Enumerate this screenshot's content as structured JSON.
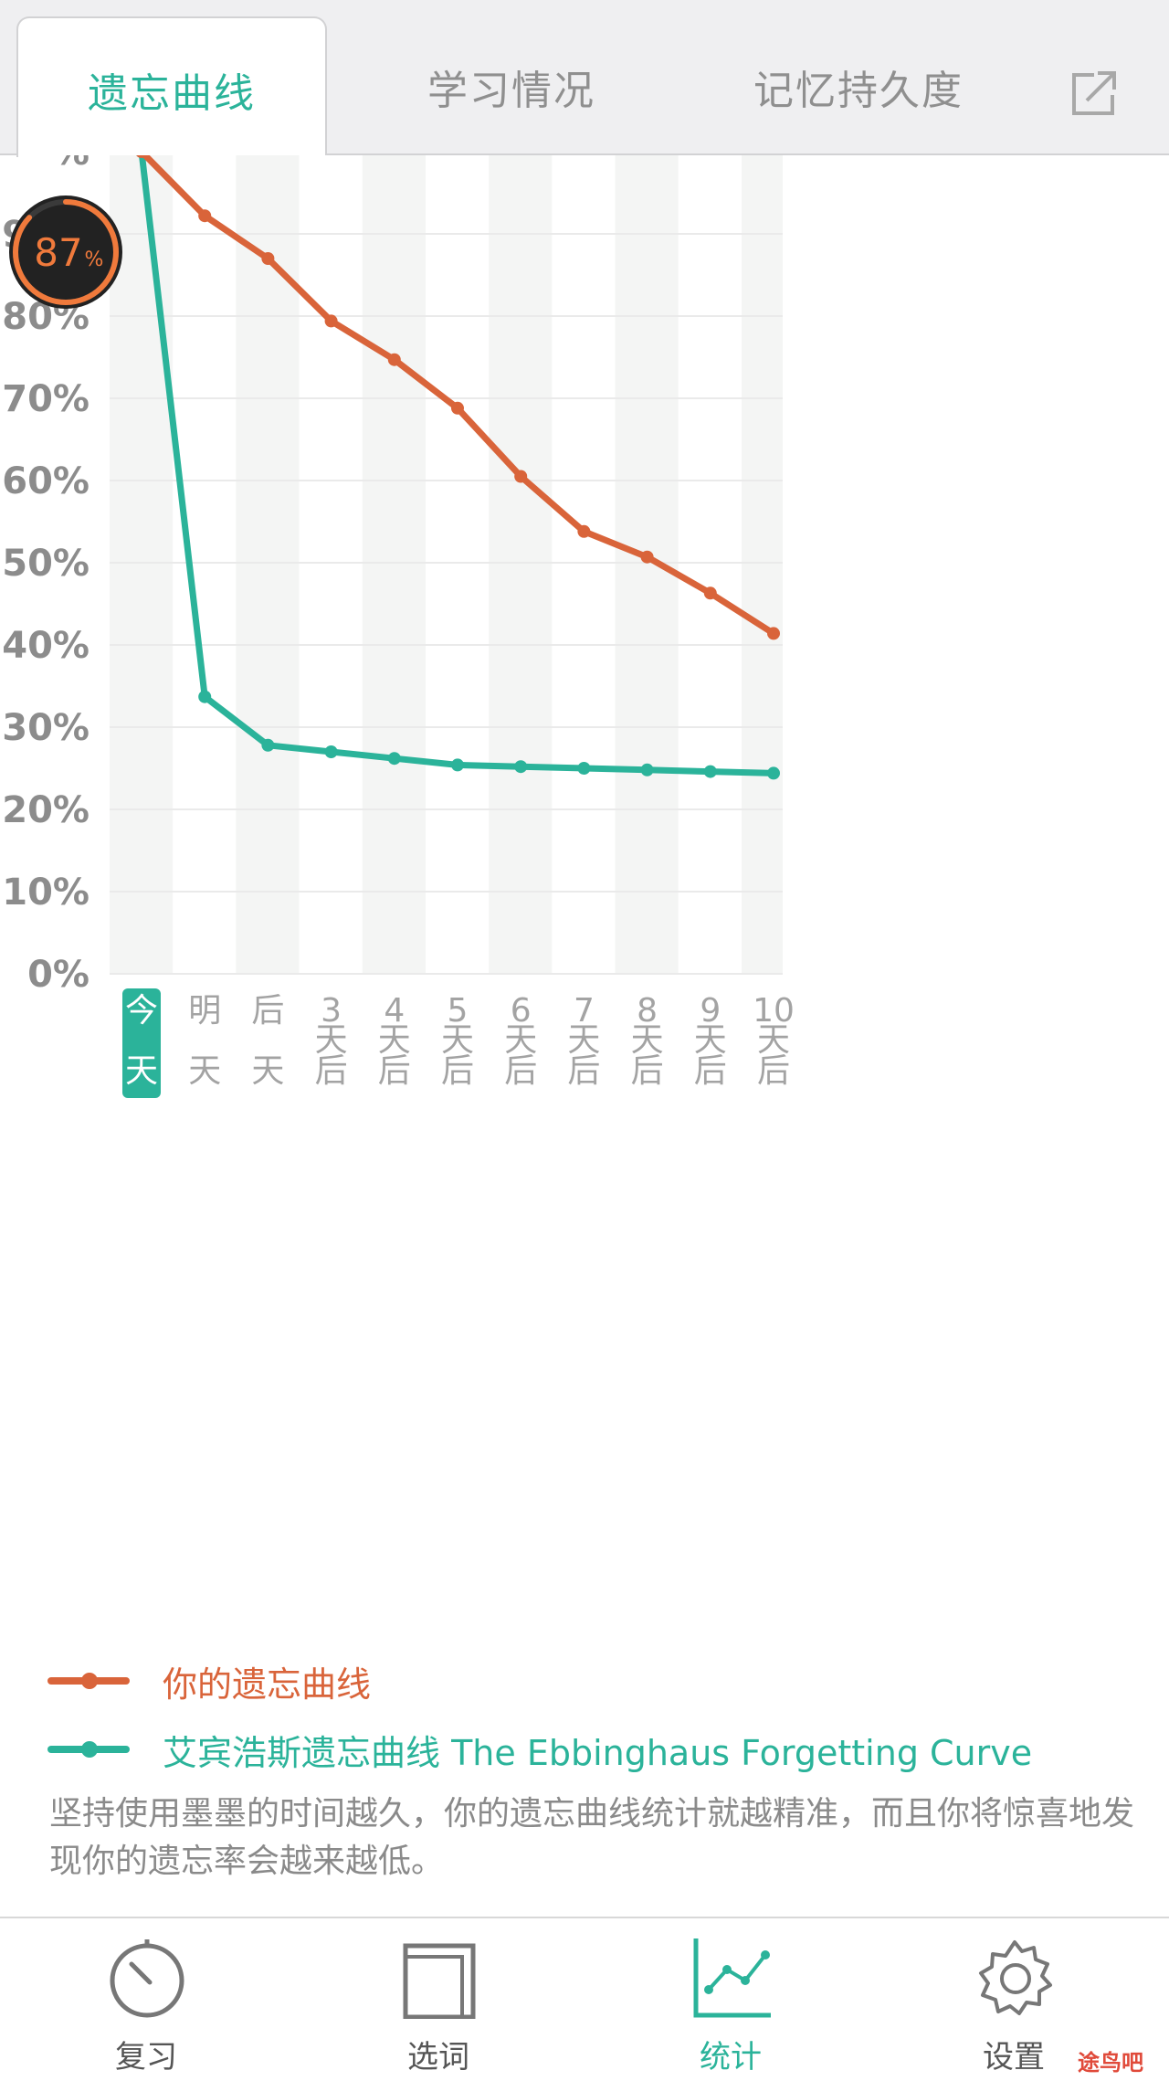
{
  "tabs": [
    {
      "label": "遗忘曲线",
      "active": true
    },
    {
      "label": "学习情况",
      "active": false
    },
    {
      "label": "记忆持久度",
      "active": false
    }
  ],
  "score_badge": {
    "value": "87",
    "unit": "%",
    "ring_fraction": 0.87
  },
  "chart_data": {
    "type": "line",
    "y_tick_labels": [
      "%",
      "90%",
      "80%",
      "70%",
      "60%",
      "50%",
      "40%",
      "30%",
      "20%",
      "10%",
      "0%"
    ],
    "ylim": [
      0,
      100
    ],
    "categories": [
      {
        "top": "今",
        "mid": "",
        "bottom": "天"
      },
      {
        "top": "明",
        "mid": "",
        "bottom": "天"
      },
      {
        "top": "后",
        "mid": "",
        "bottom": "天"
      },
      {
        "top": "3",
        "mid": "天",
        "bottom": "后"
      },
      {
        "top": "4",
        "mid": "天",
        "bottom": "后"
      },
      {
        "top": "5",
        "mid": "天",
        "bottom": "后"
      },
      {
        "top": "6",
        "mid": "天",
        "bottom": "后"
      },
      {
        "top": "7",
        "mid": "天",
        "bottom": "后"
      },
      {
        "top": "8",
        "mid": "天",
        "bottom": "后"
      },
      {
        "top": "9",
        "mid": "天",
        "bottom": "后"
      },
      {
        "top": "10",
        "mid": "天",
        "bottom": "后"
      }
    ],
    "selected_index": 0,
    "series": [
      {
        "name": "你的遗忘曲线",
        "color": "#d9643a",
        "values": [
          100,
          92.2,
          87,
          79.4,
          74.7,
          68.8,
          60.5,
          53.8,
          50.7,
          46.3,
          41.4
        ]
      },
      {
        "name": "艾宾浩斯遗忘曲线 The Ebbinghaus Forgetting Curve",
        "color": "#2bb39a",
        "values": [
          100,
          33.7,
          27.8,
          27.0,
          26.2,
          25.4,
          25.2,
          25.0,
          24.8,
          24.6,
          24.4
        ]
      }
    ],
    "grid": true
  },
  "note": "坚持使用墨墨的时间越久，你的遗忘曲线统计就越精准，而且你将惊喜地发现你的遗忘率会越来越低。",
  "bottom_nav": [
    {
      "label": "复习",
      "icon": "timer-icon",
      "active": false
    },
    {
      "label": "选词",
      "icon": "book-icon",
      "active": false
    },
    {
      "label": "统计",
      "icon": "stats-chart-icon",
      "active": true
    },
    {
      "label": "设置",
      "icon": "gear-icon",
      "active": false
    }
  ],
  "watermark": "途鸟吧",
  "colors": {
    "accent": "#2bb39a",
    "mine": "#d9643a",
    "tab_bg": "#efeff1"
  }
}
